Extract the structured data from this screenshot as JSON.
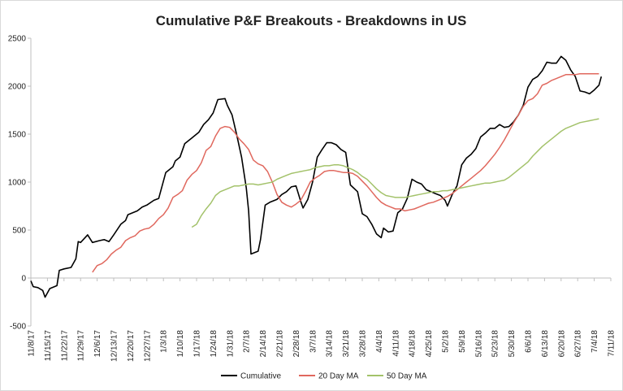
{
  "chart_data": {
    "type": "line",
    "title": "Cumulative P&F Breakouts - Breakdowns in US",
    "xlabel": "",
    "ylabel": "",
    "ylim": [
      -500,
      2500
    ],
    "yticks": [
      -500,
      0,
      500,
      1000,
      1500,
      2000,
      2500
    ],
    "x_start": "11/8/17",
    "x_end": "7/11/18",
    "xticks": [
      "11/8/17",
      "11/15/17",
      "11/22/17",
      "11/29/17",
      "12/6/17",
      "12/13/17",
      "12/20/17",
      "12/27/17",
      "1/3/18",
      "1/10/18",
      "1/17/18",
      "1/24/18",
      "1/31/18",
      "2/7/18",
      "2/14/18",
      "2/21/18",
      "2/28/18",
      "3/7/18",
      "3/14/18",
      "3/21/18",
      "3/28/18",
      "4/4/18",
      "4/11/18",
      "4/18/18",
      "4/25/18",
      "5/2/18",
      "5/9/18",
      "5/16/18",
      "5/23/18",
      "5/30/18",
      "6/6/18",
      "6/13/18",
      "6/20/18",
      "6/27/18",
      "7/4/18",
      "7/11/18"
    ],
    "grid": false,
    "legend_position": "bottom",
    "series": [
      {
        "name": "Cumulative",
        "color": "#000000",
        "points": [
          [
            0,
            -30
          ],
          [
            1,
            -90
          ],
          [
            3,
            -100
          ],
          [
            5,
            -130
          ],
          [
            6,
            -200
          ],
          [
            8,
            -110
          ],
          [
            11,
            -80
          ],
          [
            12,
            80
          ],
          [
            14,
            95
          ],
          [
            17,
            110
          ],
          [
            19,
            200
          ],
          [
            20,
            380
          ],
          [
            21,
            370
          ],
          [
            24,
            450
          ],
          [
            26,
            370
          ],
          [
            29,
            390
          ],
          [
            31,
            400
          ],
          [
            33,
            380
          ],
          [
            35,
            450
          ],
          [
            38,
            560
          ],
          [
            40,
            600
          ],
          [
            41,
            660
          ],
          [
            43,
            680
          ],
          [
            45,
            700
          ],
          [
            47,
            740
          ],
          [
            49,
            760
          ],
          [
            52,
            810
          ],
          [
            54,
            830
          ],
          [
            57,
            1100
          ],
          [
            60,
            1160
          ],
          [
            61,
            1220
          ],
          [
            63,
            1260
          ],
          [
            65,
            1400
          ],
          [
            68,
            1460
          ],
          [
            71,
            1520
          ],
          [
            73,
            1600
          ],
          [
            75,
            1650
          ],
          [
            77,
            1720
          ],
          [
            79,
            1860
          ],
          [
            82,
            1870
          ],
          [
            83,
            1800
          ],
          [
            85,
            1700
          ],
          [
            87,
            1490
          ],
          [
            89,
            1260
          ],
          [
            91,
            940
          ],
          [
            92,
            700
          ],
          [
            93,
            250
          ],
          [
            96,
            280
          ],
          [
            97,
            400
          ],
          [
            99,
            760
          ],
          [
            101,
            790
          ],
          [
            104,
            820
          ],
          [
            106,
            870
          ],
          [
            108,
            900
          ],
          [
            110,
            950
          ],
          [
            112,
            960
          ],
          [
            114,
            800
          ],
          [
            115,
            730
          ],
          [
            117,
            820
          ],
          [
            119,
            1000
          ],
          [
            121,
            1260
          ],
          [
            123,
            1340
          ],
          [
            125,
            1410
          ],
          [
            127,
            1410
          ],
          [
            129,
            1390
          ],
          [
            131,
            1340
          ],
          [
            133,
            1310
          ],
          [
            135,
            970
          ],
          [
            138,
            900
          ],
          [
            140,
            670
          ],
          [
            142,
            640
          ],
          [
            144,
            560
          ],
          [
            146,
            460
          ],
          [
            148,
            420
          ],
          [
            149,
            520
          ],
          [
            151,
            480
          ],
          [
            153,
            490
          ],
          [
            155,
            680
          ],
          [
            157,
            720
          ],
          [
            159,
            830
          ],
          [
            161,
            1030
          ],
          [
            163,
            1000
          ],
          [
            165,
            980
          ],
          [
            167,
            920
          ],
          [
            169,
            900
          ],
          [
            171,
            880
          ],
          [
            173,
            860
          ],
          [
            175,
            810
          ],
          [
            176,
            750
          ],
          [
            178,
            870
          ],
          [
            180,
            960
          ],
          [
            182,
            1180
          ],
          [
            184,
            1250
          ],
          [
            186,
            1290
          ],
          [
            188,
            1350
          ],
          [
            190,
            1470
          ],
          [
            192,
            1510
          ],
          [
            194,
            1560
          ],
          [
            196,
            1560
          ],
          [
            198,
            1600
          ],
          [
            200,
            1570
          ],
          [
            202,
            1580
          ],
          [
            204,
            1630
          ],
          [
            206,
            1700
          ],
          [
            208,
            1800
          ],
          [
            210,
            1990
          ],
          [
            212,
            2070
          ],
          [
            214,
            2100
          ],
          [
            216,
            2160
          ],
          [
            218,
            2250
          ],
          [
            220,
            2240
          ],
          [
            222,
            2240
          ],
          [
            224,
            2310
          ],
          [
            226,
            2270
          ],
          [
            228,
            2170
          ],
          [
            230,
            2100
          ],
          [
            232,
            1950
          ],
          [
            234,
            1940
          ],
          [
            236,
            1920
          ],
          [
            238,
            1960
          ],
          [
            240,
            2010
          ],
          [
            241,
            2100
          ]
        ]
      },
      {
        "name": "20 Day MA",
        "color": "#e0685e",
        "points": [
          [
            26,
            60
          ],
          [
            28,
            130
          ],
          [
            30,
            150
          ],
          [
            32,
            190
          ],
          [
            34,
            250
          ],
          [
            36,
            290
          ],
          [
            38,
            320
          ],
          [
            40,
            390
          ],
          [
            42,
            420
          ],
          [
            44,
            440
          ],
          [
            46,
            490
          ],
          [
            48,
            510
          ],
          [
            50,
            520
          ],
          [
            52,
            560
          ],
          [
            54,
            620
          ],
          [
            56,
            660
          ],
          [
            58,
            730
          ],
          [
            60,
            840
          ],
          [
            62,
            870
          ],
          [
            64,
            910
          ],
          [
            66,
            1020
          ],
          [
            68,
            1080
          ],
          [
            70,
            1120
          ],
          [
            72,
            1200
          ],
          [
            74,
            1330
          ],
          [
            76,
            1370
          ],
          [
            78,
            1480
          ],
          [
            80,
            1560
          ],
          [
            82,
            1580
          ],
          [
            84,
            1570
          ],
          [
            86,
            1520
          ],
          [
            88,
            1450
          ],
          [
            90,
            1400
          ],
          [
            92,
            1340
          ],
          [
            94,
            1230
          ],
          [
            96,
            1190
          ],
          [
            98,
            1170
          ],
          [
            100,
            1110
          ],
          [
            102,
            1000
          ],
          [
            104,
            870
          ],
          [
            106,
            790
          ],
          [
            108,
            760
          ],
          [
            110,
            740
          ],
          [
            112,
            770
          ],
          [
            114,
            810
          ],
          [
            116,
            900
          ],
          [
            118,
            1000
          ],
          [
            120,
            1040
          ],
          [
            122,
            1070
          ],
          [
            124,
            1110
          ],
          [
            126,
            1120
          ],
          [
            128,
            1120
          ],
          [
            130,
            1110
          ],
          [
            132,
            1100
          ],
          [
            134,
            1100
          ],
          [
            136,
            1090
          ],
          [
            138,
            1060
          ],
          [
            140,
            1010
          ],
          [
            142,
            960
          ],
          [
            144,
            900
          ],
          [
            146,
            840
          ],
          [
            148,
            790
          ],
          [
            150,
            760
          ],
          [
            152,
            740
          ],
          [
            154,
            720
          ],
          [
            156,
            720
          ],
          [
            158,
            700
          ],
          [
            160,
            710
          ],
          [
            162,
            720
          ],
          [
            164,
            740
          ],
          [
            166,
            760
          ],
          [
            168,
            780
          ],
          [
            170,
            790
          ],
          [
            172,
            810
          ],
          [
            174,
            830
          ],
          [
            176,
            850
          ],
          [
            178,
            880
          ],
          [
            180,
            920
          ],
          [
            182,
            960
          ],
          [
            184,
            1000
          ],
          [
            186,
            1040
          ],
          [
            188,
            1080
          ],
          [
            190,
            1120
          ],
          [
            192,
            1170
          ],
          [
            194,
            1230
          ],
          [
            196,
            1290
          ],
          [
            198,
            1360
          ],
          [
            200,
            1440
          ],
          [
            202,
            1530
          ],
          [
            204,
            1620
          ],
          [
            206,
            1700
          ],
          [
            208,
            1790
          ],
          [
            210,
            1850
          ],
          [
            212,
            1870
          ],
          [
            214,
            1920
          ],
          [
            216,
            2010
          ],
          [
            218,
            2030
          ],
          [
            220,
            2060
          ],
          [
            222,
            2080
          ],
          [
            224,
            2100
          ],
          [
            226,
            2120
          ],
          [
            228,
            2120
          ],
          [
            230,
            2120
          ],
          [
            232,
            2130
          ],
          [
            234,
            2130
          ],
          [
            236,
            2130
          ],
          [
            238,
            2130
          ],
          [
            240,
            2130
          ]
        ]
      },
      {
        "name": "50 Day MA",
        "color": "#a3c26a",
        "points": [
          [
            68,
            530
          ],
          [
            70,
            560
          ],
          [
            72,
            650
          ],
          [
            74,
            720
          ],
          [
            76,
            780
          ],
          [
            78,
            860
          ],
          [
            80,
            900
          ],
          [
            82,
            920
          ],
          [
            84,
            940
          ],
          [
            86,
            960
          ],
          [
            88,
            960
          ],
          [
            90,
            970
          ],
          [
            92,
            980
          ],
          [
            94,
            980
          ],
          [
            96,
            970
          ],
          [
            98,
            980
          ],
          [
            100,
            990
          ],
          [
            102,
            1000
          ],
          [
            104,
            1030
          ],
          [
            106,
            1050
          ],
          [
            108,
            1070
          ],
          [
            110,
            1090
          ],
          [
            112,
            1100
          ],
          [
            114,
            1110
          ],
          [
            116,
            1120
          ],
          [
            118,
            1130
          ],
          [
            120,
            1150
          ],
          [
            122,
            1160
          ],
          [
            124,
            1170
          ],
          [
            126,
            1170
          ],
          [
            128,
            1180
          ],
          [
            130,
            1180
          ],
          [
            132,
            1170
          ],
          [
            134,
            1150
          ],
          [
            136,
            1130
          ],
          [
            138,
            1100
          ],
          [
            140,
            1060
          ],
          [
            142,
            1030
          ],
          [
            144,
            980
          ],
          [
            146,
            930
          ],
          [
            148,
            890
          ],
          [
            150,
            860
          ],
          [
            152,
            850
          ],
          [
            154,
            840
          ],
          [
            156,
            840
          ],
          [
            158,
            840
          ],
          [
            160,
            850
          ],
          [
            162,
            860
          ],
          [
            164,
            870
          ],
          [
            166,
            880
          ],
          [
            168,
            890
          ],
          [
            170,
            900
          ],
          [
            172,
            900
          ],
          [
            174,
            910
          ],
          [
            176,
            910
          ],
          [
            178,
            920
          ],
          [
            180,
            930
          ],
          [
            182,
            940
          ],
          [
            184,
            950
          ],
          [
            186,
            960
          ],
          [
            188,
            970
          ],
          [
            190,
            980
          ],
          [
            192,
            990
          ],
          [
            194,
            990
          ],
          [
            196,
            1000
          ],
          [
            198,
            1010
          ],
          [
            200,
            1020
          ],
          [
            202,
            1050
          ],
          [
            204,
            1090
          ],
          [
            206,
            1130
          ],
          [
            208,
            1170
          ],
          [
            210,
            1210
          ],
          [
            212,
            1270
          ],
          [
            214,
            1320
          ],
          [
            216,
            1370
          ],
          [
            218,
            1410
          ],
          [
            220,
            1450
          ],
          [
            222,
            1490
          ],
          [
            224,
            1530
          ],
          [
            226,
            1560
          ],
          [
            228,
            1580
          ],
          [
            230,
            1600
          ],
          [
            232,
            1620
          ],
          [
            234,
            1630
          ],
          [
            236,
            1640
          ],
          [
            238,
            1650
          ],
          [
            240,
            1660
          ]
        ]
      }
    ]
  }
}
